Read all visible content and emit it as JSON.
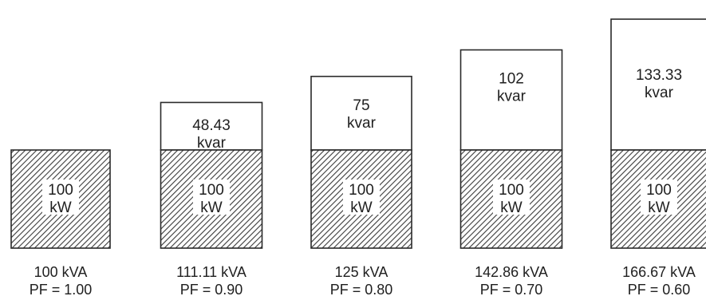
{
  "columns": [
    {
      "kw": 100,
      "kvar": 0,
      "kva": 100,
      "kw_label": [
        "100",
        "kW"
      ],
      "kvar_label": [],
      "kva_label": "100 kVA",
      "pf_label": "PF = 1.00"
    },
    {
      "kw": 100,
      "kvar": 48.43,
      "kva": 111.11,
      "kw_label": [
        "100",
        "kW"
      ],
      "kvar_label": [
        "48.43",
        "kvar"
      ],
      "kva_label": "111.11 kVA",
      "pf_label": "PF = 0.90"
    },
    {
      "kw": 100,
      "kvar": 75,
      "kva": 125,
      "kw_label": [
        "100",
        "kW"
      ],
      "kvar_label": [
        "75",
        "kvar"
      ],
      "kva_label": "125 kVA",
      "pf_label": "PF = 0.80"
    },
    {
      "kw": 100,
      "kvar": 102,
      "kva": 142.86,
      "kw_label": [
        "100",
        "kW"
      ],
      "kvar_label": [
        "102",
        "kvar"
      ],
      "kva_label": "142.86 kVA",
      "pf_label": "PF = 0.70"
    },
    {
      "kw": 100,
      "kvar": 133.33,
      "kva": 166.67,
      "kw_label": [
        "100",
        "kW"
      ],
      "kvar_label": [
        "133.33",
        "kvar"
      ],
      "kva_label": "166.67 kVA",
      "pf_label": "PF = 0.60"
    }
  ],
  "colors": {
    "outline": "#2a2a2a",
    "hatch": "#3a3a3a",
    "label_bg": "#ffffff",
    "kvar_fill": "#ffffff"
  }
}
